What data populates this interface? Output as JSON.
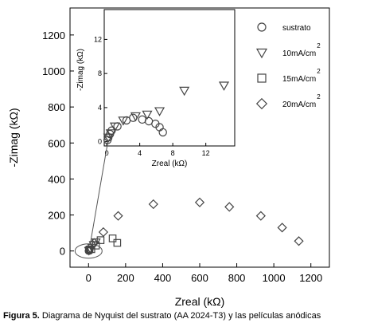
{
  "caption": {
    "label": "Figura 5.",
    "text": " Diagrama de Nyquist del sustrato (AA 2024-T3) y las películas anódicas"
  },
  "chart_data": [
    {
      "type": "scatter",
      "title": "",
      "xlabel": "Zreal (kΩ)",
      "ylabel": "-Zimag (kΩ)",
      "xlim": [
        -100,
        1300
      ],
      "ylim": [
        -90,
        1350
      ],
      "xticks": [
        0,
        200,
        400,
        600,
        800,
        1000,
        1200
      ],
      "yticks": [
        0,
        200,
        400,
        600,
        800,
        1000,
        1200
      ],
      "grid": false,
      "legend": "top-right",
      "series": [
        {
          "name": "sustrato",
          "marker": "circle",
          "x": [
            0,
            2,
            4,
            6
          ],
          "y": [
            0,
            1,
            2,
            1
          ]
        },
        {
          "name": "10mA/cm",
          "sup": "2",
          "marker": "triangle-down",
          "x": [
            2,
            5,
            10,
            18,
            27,
            40
          ],
          "y": [
            2,
            6,
            10,
            20,
            35,
            50
          ]
        },
        {
          "name": "15mA/cm",
          "sup": "2",
          "marker": "square",
          "x": [
            15,
            40,
            65,
            130,
            155
          ],
          "y": [
            10,
            30,
            60,
            70,
            45
          ]
        },
        {
          "name": "20mA/cm",
          "sup": "2",
          "marker": "diamond",
          "x": [
            30,
            80,
            160,
            350,
            600,
            760,
            930,
            1045,
            1135
          ],
          "y": [
            45,
            105,
            195,
            260,
            270,
            245,
            195,
            130,
            55
          ]
        }
      ]
    },
    {
      "type": "scatter",
      "title": "",
      "xlabel": "Zreal (kΩ)",
      "ylabel": "-Zimag (kΩ)",
      "xlim": [
        -0.3,
        15.5
      ],
      "ylim": [
        -0.5,
        15.5
      ],
      "xticks": [
        0,
        4,
        8,
        12
      ],
      "yticks": [
        0,
        4,
        8,
        12
      ],
      "grid": false,
      "series": [
        {
          "name": "sustrato",
          "marker": "circle",
          "x": [
            0.1,
            0.2,
            0.4,
            0.6,
            1.3,
            2.4,
            3.2,
            4.3,
            5.1,
            5.9,
            6.4,
            6.8
          ],
          "y": [
            0.2,
            0.5,
            0.9,
            1.3,
            1.8,
            2.5,
            2.8,
            2.6,
            2.4,
            2.1,
            1.7,
            1.1
          ]
        },
        {
          "name": "10mA/cm",
          "sup": "2",
          "marker": "triangle-down",
          "x": [
            0.2,
            0.5,
            1.0,
            2.0,
            3.5,
            4.9,
            6.4,
            9.4,
            14.2
          ],
          "y": [
            0.5,
            1.0,
            1.8,
            2.5,
            3.0,
            3.2,
            3.6,
            6.0,
            6.6
          ]
        }
      ]
    }
  ],
  "colors": {
    "marker_stroke": "#444444",
    "axis": "#000000"
  }
}
